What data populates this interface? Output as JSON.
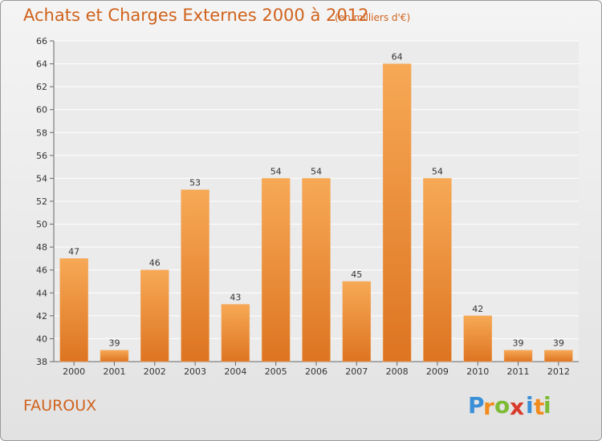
{
  "title": "Achats et Charges Externes 2000 à 2012",
  "subtitle": "(en milliers d'€)",
  "commune": "FAUROUX",
  "logo": {
    "text": "Proxiti",
    "letters": [
      "P",
      "r",
      "o",
      "x",
      "i",
      "t",
      "i"
    ],
    "colors": [
      "#3a8fd6",
      "#f28c1e",
      "#7dbb35",
      "#d93a2b",
      "#3a8fd6",
      "#f28c1e",
      "#7dbb35"
    ]
  },
  "colors": {
    "title": "#d0621c",
    "bar_top": "#f7a955",
    "bar_bottom": "#dd7422",
    "background": "#ebebeb",
    "grid": "#ffffff"
  },
  "chart_data": {
    "type": "bar",
    "title": "Achats et Charges Externes 2000 à 2012",
    "subtitle": "(en milliers d'€)",
    "categories": [
      "2000",
      "2001",
      "2002",
      "2003",
      "2004",
      "2005",
      "2006",
      "2007",
      "2008",
      "2009",
      "2010",
      "2011",
      "2012"
    ],
    "values": [
      47,
      39,
      46,
      53,
      43,
      54,
      54,
      45,
      64,
      54,
      42,
      39,
      39
    ],
    "ylim": [
      38,
      66
    ],
    "yticks": [
      38,
      40,
      42,
      44,
      46,
      48,
      50,
      52,
      54,
      56,
      58,
      60,
      62,
      64,
      66
    ],
    "grid": true
  }
}
